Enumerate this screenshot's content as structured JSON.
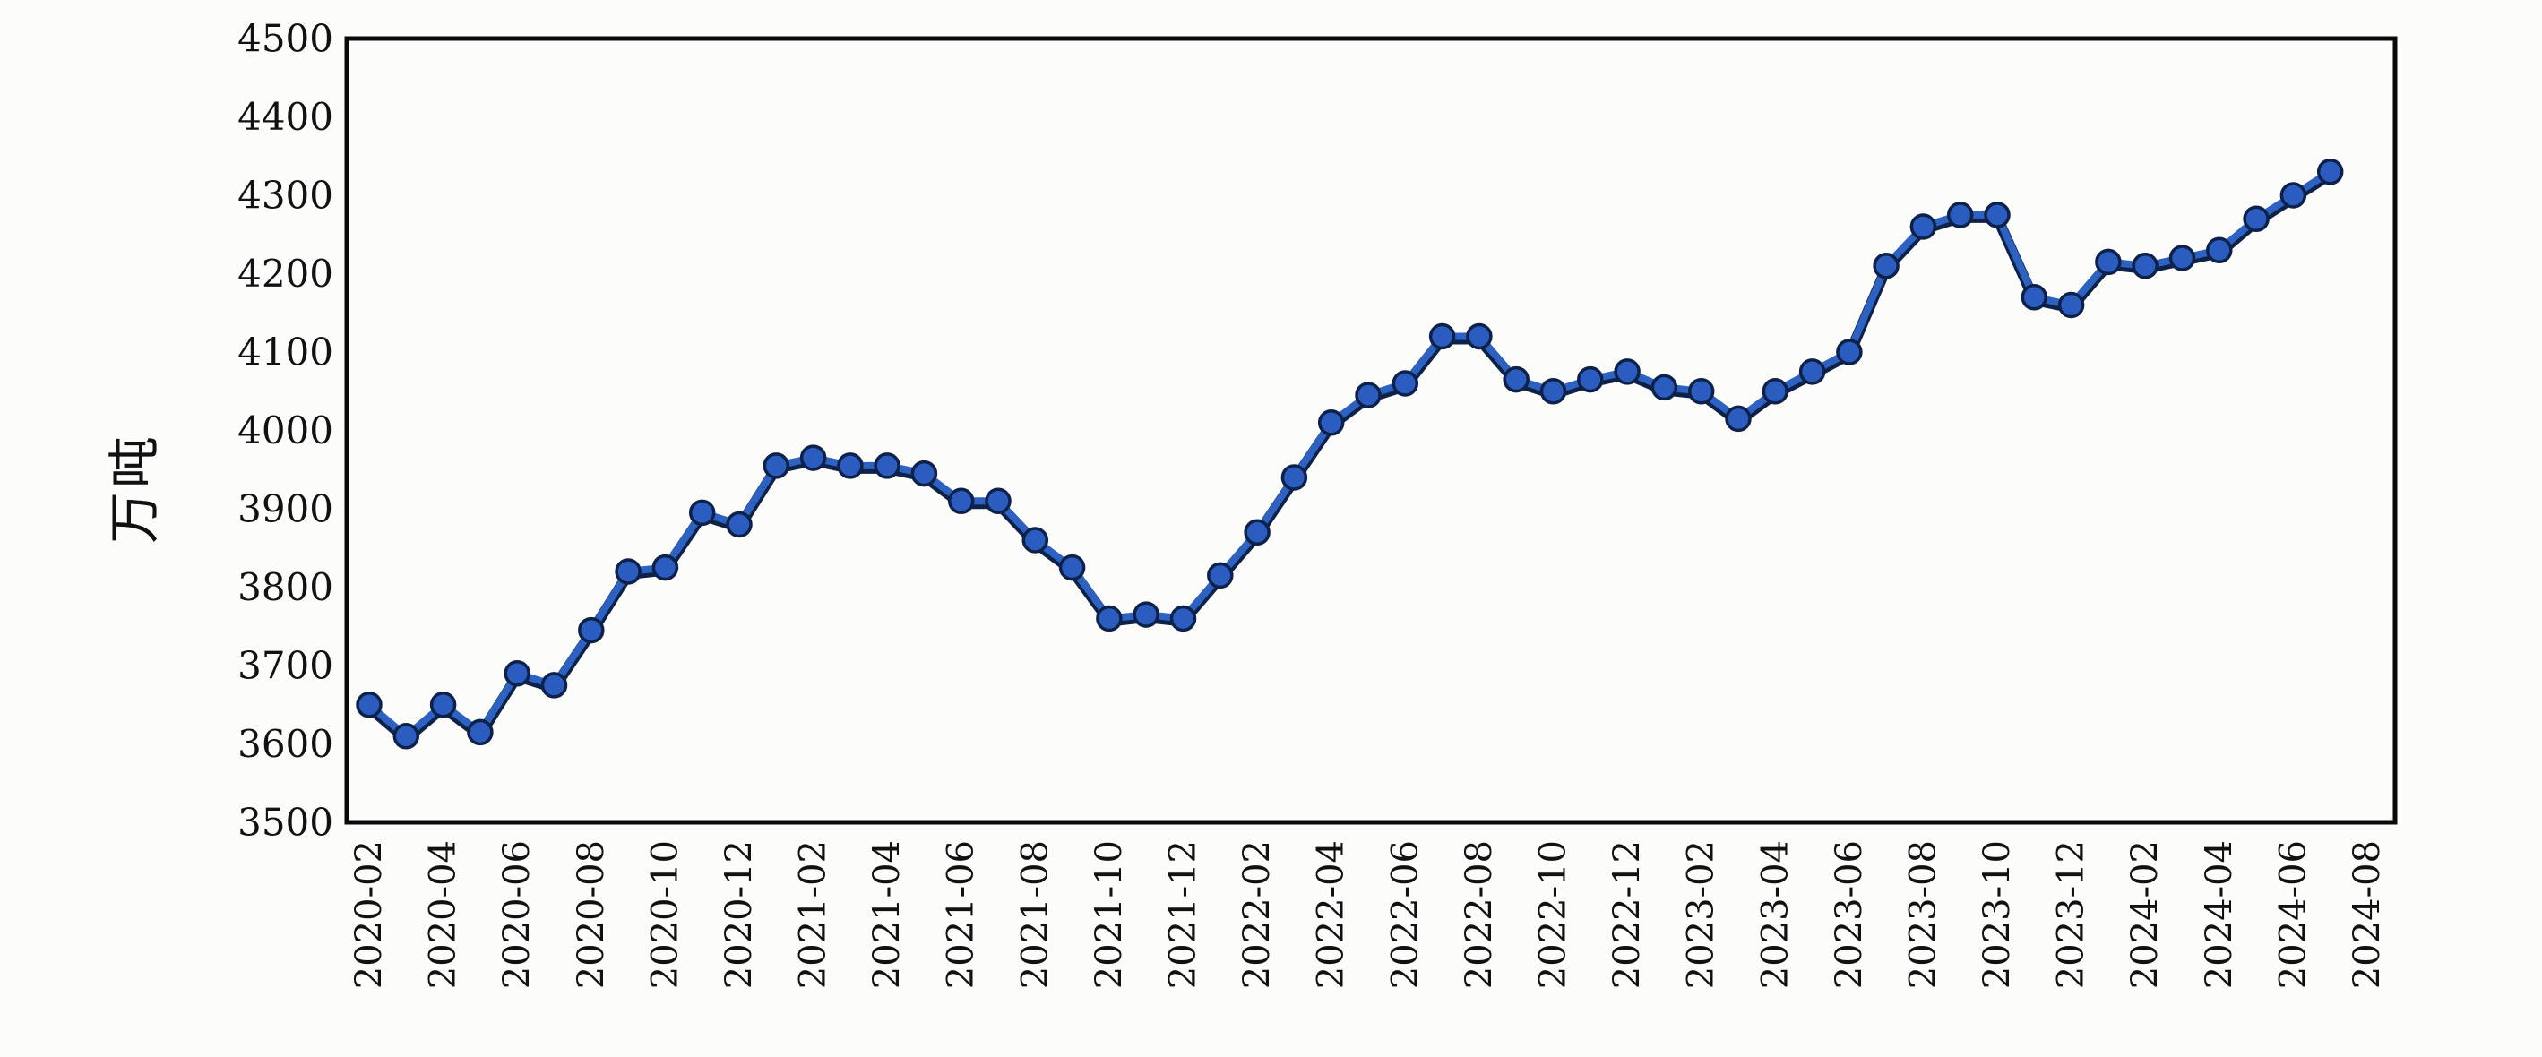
{
  "chart_data": {
    "type": "line",
    "ylabel": "万吨",
    "xlabel": "",
    "legend": "none",
    "grid": false,
    "ylim": [
      3500,
      4500
    ],
    "y_ticks": [
      3500,
      3600,
      3700,
      3800,
      3900,
      4000,
      4100,
      4200,
      4300,
      4400,
      4500
    ],
    "x_tick_labels": [
      "2020-02",
      "2020-04",
      "2020-06",
      "2020-08",
      "2020-10",
      "2020-12",
      "2021-02",
      "2021-04",
      "2021-06",
      "2021-08",
      "2021-10",
      "2021-12",
      "2022-02",
      "2022-04",
      "2022-06",
      "2022-08",
      "2022-10",
      "2022-12",
      "2023-02",
      "2023-04",
      "2023-06",
      "2023-08",
      "2023-10",
      "2023-12",
      "2024-02",
      "2024-04",
      "2024-06",
      "2024-08"
    ],
    "x_tick_step": 2,
    "x_axis_last_category": "2024-08",
    "x": [
      "2020-02",
      "2020-03",
      "2020-04",
      "2020-05",
      "2020-06",
      "2020-07",
      "2020-08",
      "2020-09",
      "2020-10",
      "2020-11",
      "2020-12",
      "2021-01",
      "2021-02",
      "2021-03",
      "2021-04",
      "2021-05",
      "2021-06",
      "2021-07",
      "2021-08",
      "2021-09",
      "2021-10",
      "2021-11",
      "2021-12",
      "2022-01",
      "2022-02",
      "2022-03",
      "2022-04",
      "2022-05",
      "2022-06",
      "2022-07",
      "2022-08",
      "2022-09",
      "2022-10",
      "2022-11",
      "2022-12",
      "2023-01",
      "2023-02",
      "2023-03",
      "2023-04",
      "2023-05",
      "2023-06",
      "2023-07",
      "2023-08",
      "2023-09",
      "2023-10",
      "2023-11",
      "2023-12",
      "2024-01",
      "2024-02",
      "2024-03",
      "2024-04",
      "2024-05",
      "2024-06",
      "2024-07"
    ],
    "values": [
      3650,
      3610,
      3650,
      3615,
      3690,
      3675,
      3745,
      3820,
      3825,
      3895,
      3880,
      3955,
      3965,
      3955,
      3955,
      3945,
      3910,
      3910,
      3860,
      3825,
      3760,
      3765,
      3760,
      3815,
      3870,
      3940,
      4010,
      4045,
      4060,
      4120,
      4120,
      4065,
      4050,
      4065,
      4075,
      4055,
      4050,
      4015,
      4050,
      4075,
      4100,
      4210,
      4260,
      4275,
      4275,
      4170,
      4160,
      4215,
      4210,
      4220,
      4230,
      4270,
      4300,
      4330
    ],
    "colors": {
      "line": "#2d62c3",
      "marker_fill": "#2b5cc0",
      "marker_edge": "#0e2249",
      "axis": "#0a0a0a",
      "tick_text": "#111111",
      "background": "#fcfcfb"
    }
  }
}
